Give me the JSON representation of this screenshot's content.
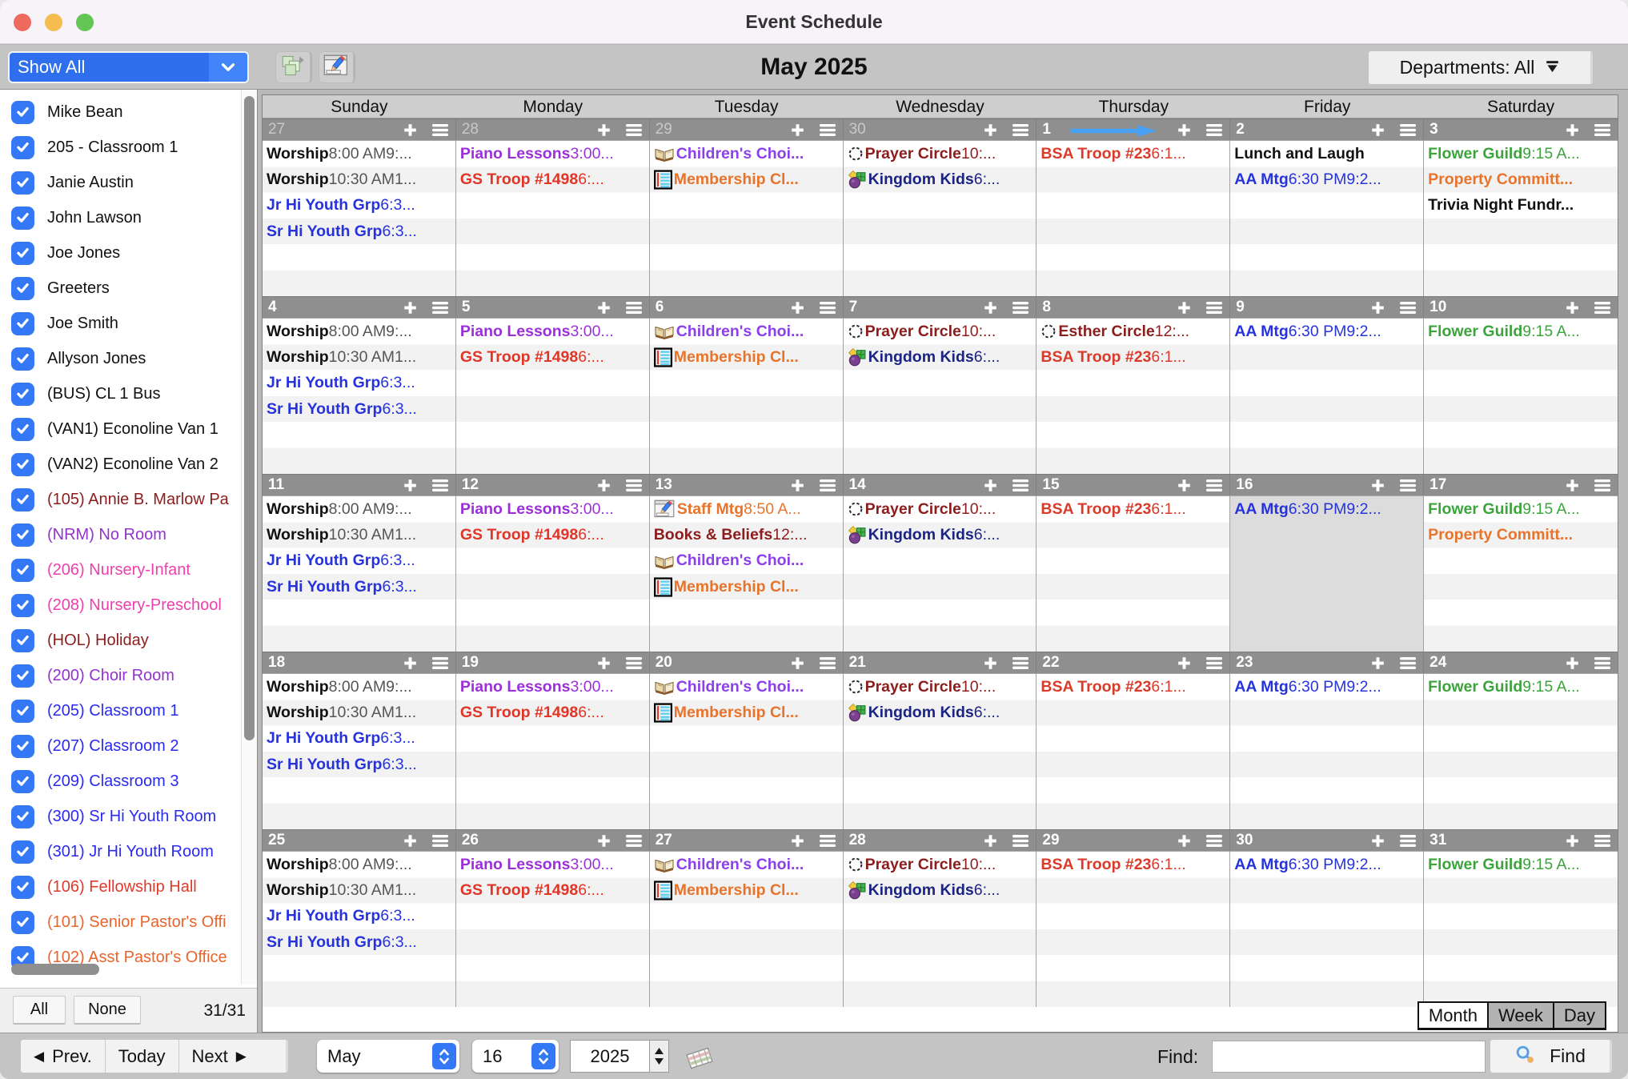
{
  "window": {
    "title": "Event Schedule"
  },
  "toolbar": {
    "filter_select": "Show All",
    "month_title": "May 2025",
    "departments_button": "Departments: All"
  },
  "sidebar": {
    "items": [
      {
        "label": "Mike Bean",
        "color": "#111111"
      },
      {
        "label": "205 - Classroom 1",
        "color": "#111111"
      },
      {
        "label": "Janie Austin",
        "color": "#111111"
      },
      {
        "label": "John Lawson",
        "color": "#111111"
      },
      {
        "label": "Joe Jones",
        "color": "#111111"
      },
      {
        "label": "Greeters",
        "color": "#111111"
      },
      {
        "label": "Joe Smith",
        "color": "#111111"
      },
      {
        "label": "Allyson Jones",
        "color": "#111111"
      },
      {
        "label": "(BUS) CL 1 Bus",
        "color": "#111111"
      },
      {
        "label": "(VAN1) Econoline Van 1",
        "color": "#111111"
      },
      {
        "label": "(VAN2) Econoline Van 2",
        "color": "#111111"
      },
      {
        "label": "(105) Annie B. Marlow Pa",
        "color": "#8c1d1d"
      },
      {
        "label": "(NRM) No Room",
        "color": "#9233cc"
      },
      {
        "label": "(206) Nursery-Infant",
        "color": "#ee3fae"
      },
      {
        "label": "(208) Nursery-Preschool",
        "color": "#ee3fae"
      },
      {
        "label": "(HOL) Holiday",
        "color": "#8c1d1d"
      },
      {
        "label": "(200) Choir Room",
        "color": "#9233cc"
      },
      {
        "label": "(205) Classroom 1",
        "color": "#2a2af0"
      },
      {
        "label": "(207) Classroom 2",
        "color": "#2a2af0"
      },
      {
        "label": "(209) Classroom 3",
        "color": "#2a2af0"
      },
      {
        "label": "(300) Sr Hi Youth Room",
        "color": "#2a2af0"
      },
      {
        "label": "(301) Jr Hi Youth Room",
        "color": "#2a2af0"
      },
      {
        "label": "(106) Fellowship Hall",
        "color": "#e03a2c"
      },
      {
        "label": "(101) Senior Pastor's Offi",
        "color": "#e8642c"
      },
      {
        "label": "(102) Asst Pastor's Office",
        "color": "#e8642c"
      }
    ],
    "all_button": "All",
    "none_button": "None",
    "count": "31/31"
  },
  "calendar": {
    "day_names": [
      "Sunday",
      "Monday",
      "Tuesday",
      "Wednesday",
      "Thursday",
      "Friday",
      "Saturday"
    ],
    "view_tabs": [
      "Month",
      "Week",
      "Day"
    ],
    "active_tab": "Month",
    "weeks": [
      {
        "days": [
          {
            "num": "27",
            "other": true,
            "events": [
              {
                "name": "Worship",
                "time": "8:00 AM9:...",
                "color": "#111111",
                "time_color": "#555555"
              },
              {
                "name": "Worship",
                "time": "10:30 AM1...",
                "color": "#111111",
                "time_color": "#555555"
              },
              {
                "name": "Jr Hi Youth Grp",
                "time": "6:3...",
                "color": "#2633dd"
              },
              {
                "name": "Sr Hi Youth Grp",
                "time": "6:3...",
                "color": "#2633dd"
              }
            ]
          },
          {
            "num": "28",
            "other": true,
            "events": [
              {
                "name": "Piano Lessons",
                "time": "3:00...",
                "color": "#9c30d8"
              },
              {
                "name": "GS Troop #1498",
                "time": "6:...",
                "color": "#e03527"
              }
            ]
          },
          {
            "num": "29",
            "other": true,
            "events": [
              {
                "name": "Children's Choi...",
                "time": "",
                "color": "#8b41e8",
                "icon": "book"
              },
              {
                "name": "Membership Cl...",
                "time": "",
                "color": "#e8742c",
                "icon": "notebook"
              }
            ]
          },
          {
            "num": "30",
            "other": true,
            "events": [
              {
                "name": "Prayer Circle",
                "time": "10:...",
                "color": "#8c1d1d",
                "icon": "dashed-circle"
              },
              {
                "name": "Kingdom Kids",
                "time": "6:...",
                "color": "#1b2383",
                "icon": "kids"
              }
            ]
          },
          {
            "num": "1",
            "arrow": true,
            "events": [
              {
                "name": "BSA Troop #23",
                "time": "6:1...",
                "color": "#d93b2b"
              }
            ]
          },
          {
            "num": "2",
            "events": [
              {
                "name": "Lunch and Laugh",
                "time": "",
                "color": "#111111"
              },
              {
                "name": "AA Mtg",
                "time": "6:30 PM9:2...",
                "color": "#2633dd"
              }
            ]
          },
          {
            "num": "3",
            "events": [
              {
                "name": "Flower Guild",
                "time": "9:15 A...",
                "color": "#3ba43b"
              },
              {
                "name": "Property Committ...",
                "time": "",
                "color": "#e8742c"
              },
              {
                "name": "Trivia Night Fundr...",
                "time": "",
                "color": "#111111"
              }
            ]
          }
        ]
      },
      {
        "days": [
          {
            "num": "4",
            "events": [
              {
                "name": "Worship",
                "time": "8:00 AM9:...",
                "color": "#111111",
                "time_color": "#555555"
              },
              {
                "name": "Worship",
                "time": "10:30 AM1...",
                "color": "#111111",
                "time_color": "#555555"
              },
              {
                "name": "Jr Hi Youth Grp",
                "time": "6:3...",
                "color": "#2633dd"
              },
              {
                "name": "Sr Hi Youth Grp",
                "time": "6:3...",
                "color": "#2633dd"
              }
            ]
          },
          {
            "num": "5",
            "events": [
              {
                "name": "Piano Lessons",
                "time": "3:00...",
                "color": "#9c30d8"
              },
              {
                "name": "GS Troop #1498",
                "time": "6:...",
                "color": "#e03527"
              }
            ]
          },
          {
            "num": "6",
            "events": [
              {
                "name": "Children's Choi...",
                "time": "",
                "color": "#8b41e8",
                "icon": "book"
              },
              {
                "name": "Membership Cl...",
                "time": "",
                "color": "#e8742c",
                "icon": "notebook"
              }
            ]
          },
          {
            "num": "7",
            "events": [
              {
                "name": "Prayer Circle",
                "time": "10:...",
                "color": "#8c1d1d",
                "icon": "dashed-circle"
              },
              {
                "name": "Kingdom Kids",
                "time": "6:...",
                "color": "#1b2383",
                "icon": "kids"
              }
            ]
          },
          {
            "num": "8",
            "events": [
              {
                "name": "Esther Circle",
                "time": "12:...",
                "color": "#8c1d1d",
                "icon": "dashed-circle"
              },
              {
                "name": "BSA Troop #23",
                "time": "6:1...",
                "color": "#d93b2b"
              }
            ]
          },
          {
            "num": "9",
            "events": [
              {
                "name": "AA Mtg",
                "time": "6:30 PM9:2...",
                "color": "#2633dd"
              }
            ]
          },
          {
            "num": "10",
            "events": [
              {
                "name": "Flower Guild",
                "time": "9:15 A...",
                "color": "#3ba43b"
              }
            ]
          }
        ]
      },
      {
        "days": [
          {
            "num": "11",
            "events": [
              {
                "name": "Worship",
                "time": "8:00 AM9:...",
                "color": "#111111",
                "time_color": "#555555"
              },
              {
                "name": "Worship",
                "time": "10:30 AM1...",
                "color": "#111111",
                "time_color": "#555555"
              },
              {
                "name": "Jr Hi Youth Grp",
                "time": "6:3...",
                "color": "#2633dd"
              },
              {
                "name": "Sr Hi Youth Grp",
                "time": "6:3...",
                "color": "#2633dd"
              }
            ]
          },
          {
            "num": "12",
            "events": [
              {
                "name": "Piano Lessons",
                "time": "3:00...",
                "color": "#9c30d8"
              },
              {
                "name": "GS Troop #1498",
                "time": "6:...",
                "color": "#e03527"
              }
            ]
          },
          {
            "num": "13",
            "events": [
              {
                "name": "Staff Mtg",
                "time": "8:50 A...",
                "color": "#e8742c",
                "icon": "window-pencil"
              },
              {
                "name": "Books & Beliefs",
                "time": "12:...",
                "color": "#8c1d1d"
              },
              {
                "name": "Children's Choi...",
                "time": "",
                "color": "#8b41e8",
                "icon": "book"
              },
              {
                "name": "Membership Cl...",
                "time": "",
                "color": "#e8742c",
                "icon": "notebook"
              }
            ]
          },
          {
            "num": "14",
            "events": [
              {
                "name": "Prayer Circle",
                "time": "10:...",
                "color": "#8c1d1d",
                "icon": "dashed-circle"
              },
              {
                "name": "Kingdom Kids",
                "time": "6:...",
                "color": "#1b2383",
                "icon": "kids"
              }
            ]
          },
          {
            "num": "15",
            "events": [
              {
                "name": "BSA Troop #23",
                "time": "6:1...",
                "color": "#d93b2b"
              }
            ]
          },
          {
            "num": "16",
            "selected": true,
            "events": [
              {
                "name": "AA Mtg",
                "time": "6:30 PM9:2...",
                "color": "#2633dd"
              }
            ]
          },
          {
            "num": "17",
            "events": [
              {
                "name": "Flower Guild",
                "time": "9:15 A...",
                "color": "#3ba43b"
              },
              {
                "name": "Property Committ...",
                "time": "",
                "color": "#e8742c"
              }
            ]
          }
        ]
      },
      {
        "days": [
          {
            "num": "18",
            "events": [
              {
                "name": "Worship",
                "time": "8:00 AM9:...",
                "color": "#111111",
                "time_color": "#555555"
              },
              {
                "name": "Worship",
                "time": "10:30 AM1...",
                "color": "#111111",
                "time_color": "#555555"
              },
              {
                "name": "Jr Hi Youth Grp",
                "time": "6:3...",
                "color": "#2633dd"
              },
              {
                "name": "Sr Hi Youth Grp",
                "time": "6:3...",
                "color": "#2633dd"
              }
            ]
          },
          {
            "num": "19",
            "events": [
              {
                "name": "Piano Lessons",
                "time": "3:00...",
                "color": "#9c30d8"
              },
              {
                "name": "GS Troop #1498",
                "time": "6:...",
                "color": "#e03527"
              }
            ]
          },
          {
            "num": "20",
            "events": [
              {
                "name": "Children's Choi...",
                "time": "",
                "color": "#8b41e8",
                "icon": "book"
              },
              {
                "name": "Membership Cl...",
                "time": "",
                "color": "#e8742c",
                "icon": "notebook"
              }
            ]
          },
          {
            "num": "21",
            "events": [
              {
                "name": "Prayer Circle",
                "time": "10:...",
                "color": "#8c1d1d",
                "icon": "dashed-circle"
              },
              {
                "name": "Kingdom Kids",
                "time": "6:...",
                "color": "#1b2383",
                "icon": "kids"
              }
            ]
          },
          {
            "num": "22",
            "events": [
              {
                "name": "BSA Troop #23",
                "time": "6:1...",
                "color": "#d93b2b"
              }
            ]
          },
          {
            "num": "23",
            "events": [
              {
                "name": "AA Mtg",
                "time": "6:30 PM9:2...",
                "color": "#2633dd"
              }
            ]
          },
          {
            "num": "24",
            "events": [
              {
                "name": "Flower Guild",
                "time": "9:15 A...",
                "color": "#3ba43b"
              }
            ]
          }
        ]
      },
      {
        "days": [
          {
            "num": "25",
            "events": [
              {
                "name": "Worship",
                "time": "8:00 AM9:...",
                "color": "#111111",
                "time_color": "#555555"
              },
              {
                "name": "Worship",
                "time": "10:30 AM1...",
                "color": "#111111",
                "time_color": "#555555"
              },
              {
                "name": "Jr Hi Youth Grp",
                "time": "6:3...",
                "color": "#2633dd"
              },
              {
                "name": "Sr Hi Youth Grp",
                "time": "6:3...",
                "color": "#2633dd"
              }
            ]
          },
          {
            "num": "26",
            "events": [
              {
                "name": "Piano Lessons",
                "time": "3:00...",
                "color": "#9c30d8"
              },
              {
                "name": "GS Troop #1498",
                "time": "6:...",
                "color": "#e03527"
              }
            ]
          },
          {
            "num": "27",
            "events": [
              {
                "name": "Children's Choi...",
                "time": "",
                "color": "#8b41e8",
                "icon": "book"
              },
              {
                "name": "Membership Cl...",
                "time": "",
                "color": "#e8742c",
                "icon": "notebook"
              }
            ]
          },
          {
            "num": "28",
            "events": [
              {
                "name": "Prayer Circle",
                "time": "10:...",
                "color": "#8c1d1d",
                "icon": "dashed-circle"
              },
              {
                "name": "Kingdom Kids",
                "time": "6:...",
                "color": "#1b2383",
                "icon": "kids"
              }
            ]
          },
          {
            "num": "29",
            "events": [
              {
                "name": "BSA Troop #23",
                "time": "6:1...",
                "color": "#d93b2b"
              }
            ]
          },
          {
            "num": "30",
            "events": [
              {
                "name": "AA Mtg",
                "time": "6:30 PM9:2...",
                "color": "#2633dd"
              }
            ]
          },
          {
            "num": "31",
            "events": [
              {
                "name": "Flower Guild",
                "time": "9:15 A...",
                "color": "#3ba43b"
              }
            ]
          }
        ]
      }
    ]
  },
  "bottombar": {
    "prev": "Prev.",
    "today": "Today",
    "next": "Next",
    "month_select": "May",
    "day_select": "16",
    "year_select": "2025",
    "find_label": "Find:",
    "find_value": "",
    "find_button": "Find"
  }
}
